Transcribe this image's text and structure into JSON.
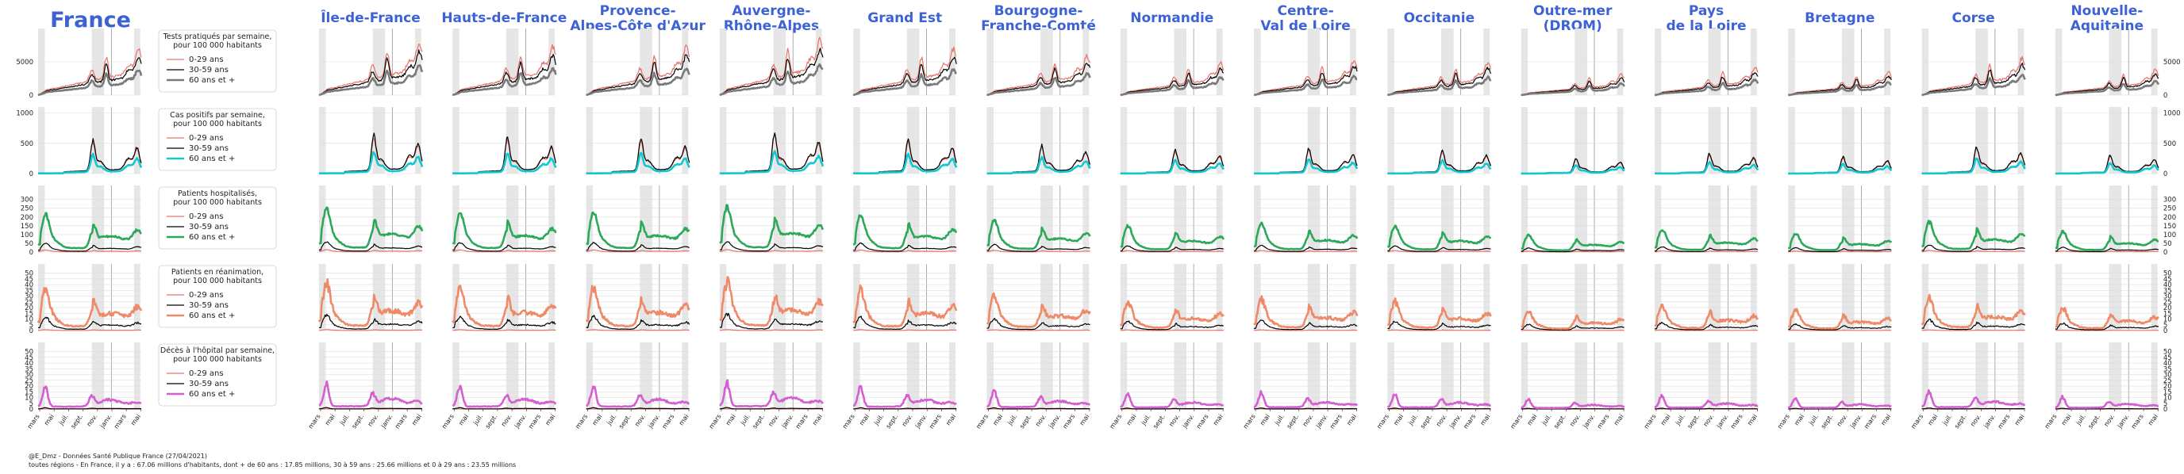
{
  "chart_data": {
    "type": "line",
    "x_ticks": [
      "mars",
      "mai",
      "juil.",
      "sept.",
      "nov.",
      "janv.",
      "mars",
      "mai"
    ],
    "age_groups": [
      "0-29 ans",
      "30-59 ans",
      "60 ans et +"
    ],
    "regions": [
      {
        "name": "France",
        "scale": 1.0
      },
      {
        "name": "Île-de-France",
        "scale": 1.15
      },
      {
        "name": "Hauts-de-France",
        "scale": 1.05
      },
      {
        "name": "Provence-\nAlpes-Côte d'Azur",
        "scale": 1.05
      },
      {
        "name": "Auvergne-\nRhône-Alpes",
        "scale": 1.2
      },
      {
        "name": "Grand Est",
        "scale": 1.0
      },
      {
        "name": "Bourgogne-\nFranche-Comté",
        "scale": 0.85
      },
      {
        "name": "Normandie",
        "scale": 0.7
      },
      {
        "name": "Centre-\nVal de Loire",
        "scale": 0.75
      },
      {
        "name": "Occitanie",
        "scale": 0.7
      },
      {
        "name": "Outre-mer\n(DROM)",
        "scale": 0.45
      },
      {
        "name": "Pays\nde la Loire",
        "scale": 0.6
      },
      {
        "name": "Bretagne",
        "scale": 0.5
      },
      {
        "name": "Corse",
        "scale": 0.8
      },
      {
        "name": "Nouvelle-\nAquitaine",
        "scale": 0.55
      }
    ],
    "rows": [
      {
        "metric": "Tests pratiqués par semaine,\npour 100 000 habitants",
        "ymax": 10000,
        "yticks": [
          0,
          5000
        ],
        "colors": [
          "#e8736a",
          "#000000",
          "#7a7a7a"
        ],
        "peaks": [
          8000,
          6600,
          5200
        ]
      },
      {
        "metric": "Cas positifs par semaine,\npour 100 000 habitants",
        "ymax": 1100,
        "yticks": [
          0,
          500,
          1000
        ],
        "colors": [
          "#e8736a",
          "#000000",
          "#12c8d0"
        ],
        "peaks": [
          570,
          600,
          400
        ]
      },
      {
        "metric": "Patients hospitalisés,\npour 100 000 habitants",
        "ymax": 380,
        "yticks": [
          0,
          50,
          100,
          150,
          200,
          250,
          300
        ],
        "colors": [
          "#e8736a",
          "#000000",
          "#2ca85a"
        ],
        "peaks": [
          8,
          35,
          150
        ]
      },
      {
        "metric": "Patients en réanimation,\npour 100 000 habitants",
        "ymax": 58,
        "yticks": [
          0,
          5,
          10,
          15,
          20,
          25,
          30,
          35,
          40,
          45,
          50
        ],
        "colors": [
          "#e8736a",
          "#000000",
          "#ee8a68"
        ],
        "peaks": [
          0.5,
          8,
          25
        ]
      },
      {
        "metric": "Décès à l'hôpital par semaine,\npour 100 000 habitants",
        "ymax": 58,
        "yticks": [
          0,
          5,
          10,
          15,
          20,
          25,
          30,
          35,
          40,
          45,
          50
        ],
        "colors": [
          "#e8736a",
          "#000000",
          "#d35fd0"
        ],
        "peaks": [
          0.05,
          1,
          17
        ]
      }
    ]
  },
  "footer": {
    "line1": "@E_Dmz - Données Santé Publique France (27/04/2021)",
    "line2": "toutes régions - En France, il y a : 67.06 millions d'habitants, dont + de 60 ans : 17.85 millions, 30 à 59 ans : 25.66 millions et 0 à 29 ans : 23.55 millions"
  }
}
